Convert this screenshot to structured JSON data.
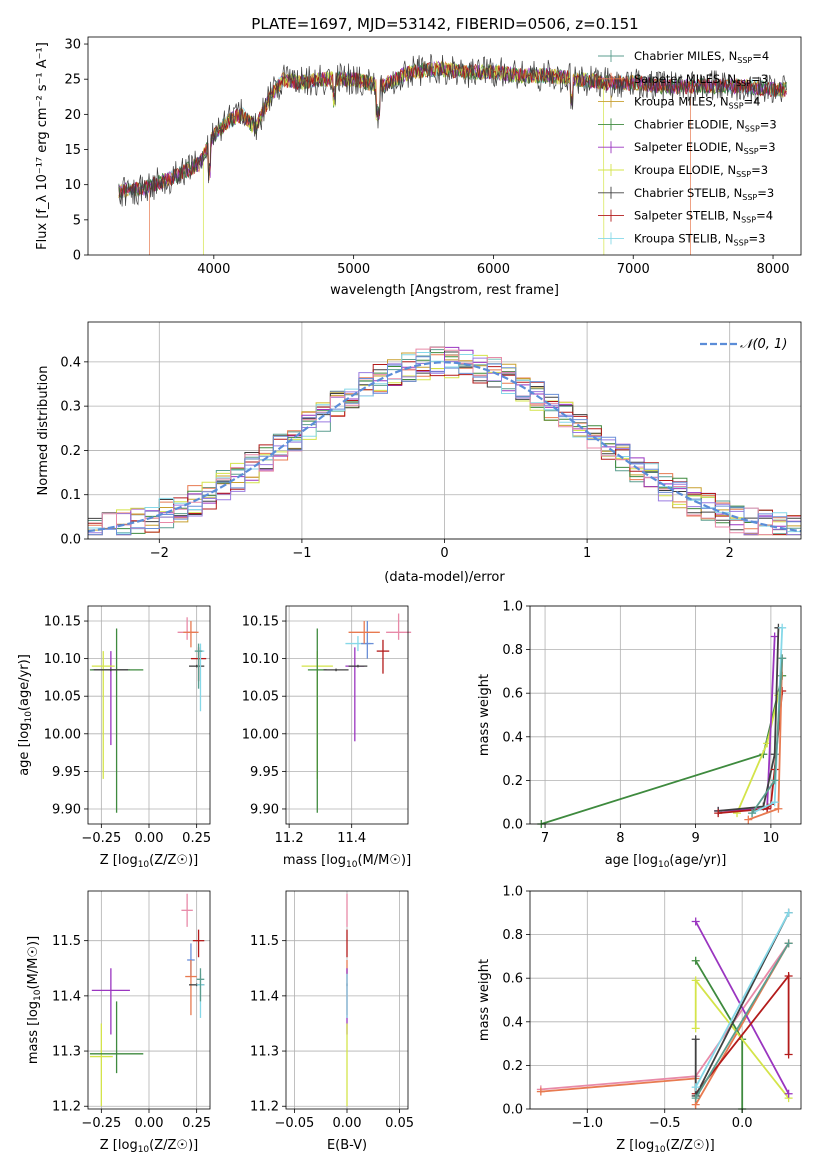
{
  "colors": {
    "chabrier_miles": "#5b9e8f",
    "salpeter_miles": "#e87a50",
    "kroupa_miles": "#c8a030",
    "chabrier_elodie": "#3e8a3e",
    "salpeter_elodie": "#9a35c0",
    "kroupa_elodie": "#d4e44a",
    "chabrier_stelib": "#404040",
    "salpeter_stelib": "#b31b1b",
    "kroupa_stelib": "#86d8e8",
    "violet": "#9a7be0",
    "pink": "#e88aa8",
    "blue": "#6a8fd8",
    "normal": "#5b8dd8",
    "orange": "#e0782a"
  },
  "chart_data": [
    {
      "type": "line",
      "title": "PLATE=1697, MJD=53142, FIBERID=0506, z=0.151",
      "xlabel": "wavelength [Angstrom, rest frame]",
      "ylabel": "Flux [f_λ 10⁻¹⁷ erg cm⁻² s⁻¹ A⁻¹]",
      "xlim": [
        3100,
        8200
      ],
      "ylim": [
        0,
        31
      ],
      "xticks": [
        "4000",
        "5000",
        "6000",
        "7000",
        "8000"
      ],
      "yticks": [
        "0",
        "5",
        "10",
        "15",
        "20",
        "25",
        "30"
      ],
      "legend_position": "right",
      "legend": [
        {
          "label": "Chabrier MILES, N_SSP=4",
          "prefix": "Chabrier MILES, N",
          "sub": "SSP",
          "suffix": "=4",
          "color_key": "chabrier_miles"
        },
        {
          "label": "Salpeter MILES, N_SSP=3",
          "prefix": "Salpeter MILES, N",
          "sub": "SSP",
          "suffix": "=3",
          "color_key": "salpeter_miles"
        },
        {
          "label": "Kroupa MILES, N_SSP=4",
          "prefix": "Kroupa MILES, N",
          "sub": "SSP",
          "suffix": "=4",
          "color_key": "kroupa_miles"
        },
        {
          "label": "Chabrier ELODIE, N_SSP=3",
          "prefix": "Chabrier ELODIE, N",
          "sub": "SSP",
          "suffix": "=3",
          "color_key": "chabrier_elodie"
        },
        {
          "label": "Salpeter ELODIE, N_SSP=3",
          "prefix": "Salpeter ELODIE, N",
          "sub": "SSP",
          "suffix": "=3",
          "color_key": "salpeter_elodie"
        },
        {
          "label": "Kroupa ELODIE, N_SSP=3",
          "prefix": "Kroupa ELODIE, N",
          "sub": "SSP",
          "suffix": "=3",
          "color_key": "kroupa_elodie"
        },
        {
          "label": "Chabrier STELIB, N_SSP=3",
          "prefix": "Chabrier STELIB, N",
          "sub": "SSP",
          "suffix": "=3",
          "color_key": "chabrier_stelib"
        },
        {
          "label": "Salpeter STELIB, N_SSP=4",
          "prefix": "Salpeter STELIB, N",
          "sub": "SSP",
          "suffix": "=4",
          "color_key": "salpeter_stelib"
        },
        {
          "label": "Kroupa STELIB, N_SSP=3",
          "prefix": "Kroupa STELIB, N",
          "sub": "SSP",
          "suffix": "=3",
          "color_key": "kroupa_stelib"
        }
      ],
      "spectrum_envelope": {
        "x": [
          3300,
          3500,
          3700,
          3900,
          4000,
          4100,
          4200,
          4300,
          4400,
          4500,
          4600,
          4800,
          5000,
          5200,
          5400,
          5600,
          5800,
          6000,
          6200,
          6400,
          6600,
          6800,
          7000,
          7200,
          7400,
          7600,
          7800,
          8000,
          8200
        ],
        "y": [
          9.0,
          9.5,
          11.0,
          13.0,
          17.0,
          19.0,
          20.0,
          18.0,
          22.5,
          25.0,
          24.5,
          25.0,
          25.0,
          24.0,
          26.0,
          26.5,
          26.0,
          26.0,
          25.5,
          25.5,
          25.0,
          24.5,
          24.5,
          24.0,
          24.0,
          24.0,
          24.0,
          23.5,
          23.5
        ]
      },
      "model_cutoffs": [
        {
          "color_key": "salpeter_miles",
          "x_start": 3540
        },
        {
          "color_key": "kroupa_elodie",
          "x_start": 3925,
          "x_end": 6790
        },
        {
          "color_key": "salpeter_miles",
          "x_end": 7410
        }
      ]
    },
    {
      "type": "histogram",
      "xlabel": "(data-model)/error",
      "ylabel": "Normed distribution",
      "xlim": [
        -2.5,
        2.5
      ],
      "ylim": [
        0,
        0.49
      ],
      "xticks": [
        "−2",
        "−1",
        "0",
        "1",
        "2"
      ],
      "yticks": [
        "0.0",
        "0.1",
        "0.2",
        "0.3",
        "0.4"
      ],
      "bin_width": 0.1,
      "legend": [
        {
          "label": "𝒩(0, 1)",
          "color_key": "normal",
          "style": "dashed"
        }
      ],
      "curve": {
        "name": "𝒩(0, 1)",
        "mean": 0,
        "sigma": 1
      }
    },
    {
      "type": "scatter",
      "xlabel_prefix": "Z [log",
      "xlabel_sub": "10",
      "xlabel_suffix": "(Z/Z☉)]",
      "ylabel_prefix": "age  [log",
      "ylabel_sub": "10",
      "ylabel_suffix": "(age/yr)]",
      "xlim": [
        -0.32,
        0.32
      ],
      "ylim": [
        9.88,
        10.17
      ],
      "xticks": [
        "−0.25",
        "0.00",
        "0.25"
      ],
      "yticks": [
        "9.90",
        "9.95",
        "10.00",
        "10.05",
        "10.10",
        "10.15"
      ],
      "points": [
        {
          "color_key": "salpeter_elodie",
          "x": -0.2,
          "y": 10.085,
          "xerr": 0.1,
          "yerr_lo": 0.1,
          "yerr_hi": 0.025
        },
        {
          "color_key": "kroupa_elodie",
          "x": -0.24,
          "y": 10.09,
          "xerr": 0.06,
          "yerr_lo": 0.15,
          "yerr_hi": 0.02
        },
        {
          "color_key": "chabrier_elodie",
          "x": -0.17,
          "y": 10.085,
          "xerr": 0.14,
          "yerr_lo": 0.19,
          "yerr_hi": 0.055
        },
        {
          "color_key": "chabrier_stelib",
          "x": -0.2,
          "y": 10.085,
          "xerr": 0.09,
          "yerr_lo": 0,
          "yerr_hi": 0
        },
        {
          "color_key": "pink",
          "x": 0.2,
          "y": 10.135,
          "xerr": 0.05,
          "yerr_lo": 0.01,
          "yerr_hi": 0.02
        },
        {
          "color_key": "salpeter_miles",
          "x": 0.22,
          "y": 10.135,
          "xerr": 0.04,
          "yerr_lo": 0.02,
          "yerr_hi": 0.015
        },
        {
          "color_key": "salpeter_stelib",
          "x": 0.26,
          "y": 10.1,
          "xerr": 0.04,
          "yerr_lo": 0.03,
          "yerr_hi": 0.015
        },
        {
          "color_key": "chabrier_stelib",
          "x": 0.25,
          "y": 10.09,
          "xerr": 0.04,
          "yerr_lo": 0,
          "yerr_hi": 0
        },
        {
          "color_key": "kroupa_stelib",
          "x": 0.27,
          "y": 10.11,
          "xerr": 0.02,
          "yerr_lo": 0.08,
          "yerr_hi": 0.01
        },
        {
          "color_key": "chabrier_miles",
          "x": 0.26,
          "y": 10.11,
          "xerr": 0.02,
          "yerr_lo": 0.05,
          "yerr_hi": 0.01
        }
      ]
    },
    {
      "type": "scatter",
      "xlabel_prefix": "mass [log",
      "xlabel_sub": "10",
      "xlabel_suffix": "(M/M☉)]",
      "ylabel": "",
      "xlim": [
        11.19,
        11.58
      ],
      "ylim": [
        9.88,
        10.17
      ],
      "xticks": [
        "11.2",
        "11.4"
      ],
      "yticks": [
        "9.90",
        "9.95",
        "10.00",
        "10.05",
        "10.10",
        "10.15"
      ],
      "points": [
        {
          "color_key": "kroupa_elodie",
          "x": 11.29,
          "y": 10.09,
          "xerr": 0.05,
          "yerr_lo": 0.15,
          "yerr_hi": 0.02
        },
        {
          "color_key": "chabrier_elodie",
          "x": 11.29,
          "y": 10.085,
          "xerr": 0.03,
          "yerr_lo": 0.19,
          "yerr_hi": 0.055
        },
        {
          "color_key": "chabrier_stelib",
          "x": 11.35,
          "y": 10.085,
          "xerr": 0.04,
          "yerr_lo": 0,
          "yerr_hi": 0
        },
        {
          "color_key": "salpeter_elodie",
          "x": 11.41,
          "y": 10.09,
          "xerr": 0.03,
          "yerr_lo": 0.1,
          "yerr_hi": 0.025
        },
        {
          "color_key": "chabrier_stelib",
          "x": 11.42,
          "y": 10.09,
          "xerr": 0.03,
          "yerr_lo": 0,
          "yerr_hi": 0
        },
        {
          "color_key": "kroupa_stelib",
          "x": 11.42,
          "y": 10.12,
          "xerr": 0.04,
          "yerr_lo": 0.01,
          "yerr_hi": 0.01
        },
        {
          "color_key": "blue",
          "x": 11.45,
          "y": 10.12,
          "xerr": 0.02,
          "yerr_lo": 0.02,
          "yerr_hi": 0.03
        },
        {
          "color_key": "salpeter_miles",
          "x": 11.44,
          "y": 10.135,
          "xerr": 0.05,
          "yerr_lo": 0.015,
          "yerr_hi": 0.015
        },
        {
          "color_key": "salpeter_stelib",
          "x": 11.5,
          "y": 10.11,
          "xerr": 0.02,
          "yerr_lo": 0.03,
          "yerr_hi": 0.015
        },
        {
          "color_key": "pink",
          "x": 11.55,
          "y": 10.135,
          "xerr": 0.04,
          "yerr_lo": 0.01,
          "yerr_hi": 0.025
        }
      ]
    },
    {
      "type": "line",
      "xlabel_prefix": "age  [log",
      "xlabel_sub": "10",
      "xlabel_suffix": "(age/yr)]",
      "ylabel": "mass weight",
      "xlim": [
        6.8,
        10.4
      ],
      "ylim": [
        0,
        1
      ],
      "xticks": [
        "7",
        "8",
        "9",
        "10"
      ],
      "yticks": [
        "0.0",
        "0.2",
        "0.4",
        "0.6",
        "0.8",
        "1.0"
      ],
      "series": [
        {
          "color_key": "chabrier_elodie",
          "x": [
            6.95,
            9.9,
            10.15
          ],
          "y": [
            0.0,
            0.32,
            0.68
          ]
        },
        {
          "color_key": "kroupa_elodie",
          "x": [
            9.55,
            9.95,
            10.1
          ],
          "y": [
            0.05,
            0.37,
            0.59
          ]
        },
        {
          "color_key": "salpeter_elodie",
          "x": [
            9.3,
            9.95,
            10.05
          ],
          "y": [
            0.06,
            0.07,
            0.86
          ]
        },
        {
          "color_key": "chabrier_stelib",
          "x": [
            9.3,
            9.9,
            10.05,
            10.1
          ],
          "y": [
            0.06,
            0.08,
            0.32,
            0.9
          ]
        },
        {
          "color_key": "salpeter_stelib",
          "x": [
            9.3,
            9.95,
            10.0,
            10.05,
            10.15
          ],
          "y": [
            0.05,
            0.07,
            0.09,
            0.25,
            0.61
          ]
        },
        {
          "color_key": "salpeter_miles",
          "x": [
            9.7,
            10.1,
            10.15
          ],
          "y": [
            0.02,
            0.07,
            0.76
          ]
        },
        {
          "color_key": "kroupa_stelib",
          "x": [
            9.75,
            10.05,
            10.15
          ],
          "y": [
            0.05,
            0.1,
            0.9
          ]
        },
        {
          "color_key": "chabrier_miles",
          "x": [
            9.75,
            10.05,
            10.15
          ],
          "y": [
            0.05,
            0.2,
            0.76
          ]
        }
      ]
    },
    {
      "type": "scatter",
      "xlabel_prefix": "Z [log",
      "xlabel_sub": "10",
      "xlabel_suffix": "(Z/Z☉)]",
      "ylabel_prefix": "mass [log",
      "ylabel_sub": "10",
      "ylabel_suffix": "(M/M☉)]",
      "xlim": [
        -0.32,
        0.32
      ],
      "ylim": [
        11.195,
        11.59
      ],
      "xticks": [
        "−0.25",
        "0.00",
        "0.25"
      ],
      "yticks": [
        "11.2",
        "11.3",
        "11.4",
        "11.5"
      ],
      "points": [
        {
          "color_key": "salpeter_elodie",
          "x": -0.2,
          "y": 11.41,
          "xerr": 0.1,
          "yerr_lo": 0.08,
          "yerr_hi": 0.04
        },
        {
          "color_key": "kroupa_elodie",
          "x": -0.25,
          "y": 11.29,
          "xerr": 0.06,
          "yerr_lo": 0.09,
          "yerr_hi": 0.06
        },
        {
          "color_key": "chabrier_elodie",
          "x": -0.17,
          "y": 11.295,
          "xerr": 0.14,
          "yerr_lo": 0.035,
          "yerr_hi": 0.095
        },
        {
          "color_key": "pink",
          "x": 0.2,
          "y": 11.555,
          "xerr": 0.03,
          "yerr_lo": 0.03,
          "yerr_hi": 0.03
        },
        {
          "color_key": "blue",
          "x": 0.22,
          "y": 11.465,
          "xerr": 0.02,
          "yerr_lo": 0.03,
          "yerr_hi": 0.03
        },
        {
          "color_key": "salpeter_miles",
          "x": 0.22,
          "y": 11.435,
          "xerr": 0.03,
          "yerr_lo": 0.07,
          "yerr_hi": 0.03
        },
        {
          "color_key": "salpeter_stelib",
          "x": 0.26,
          "y": 11.5,
          "xerr": 0.03,
          "yerr_lo": 0.03,
          "yerr_hi": 0.02
        },
        {
          "color_key": "chabrier_stelib",
          "x": 0.25,
          "y": 11.42,
          "xerr": 0.04,
          "yerr_lo": 0,
          "yerr_hi": 0
        },
        {
          "color_key": "kroupa_stelib",
          "x": 0.27,
          "y": 11.42,
          "xerr": 0.02,
          "yerr_lo": 0.06,
          "yerr_hi": 0.02
        },
        {
          "color_key": "chabrier_miles",
          "x": 0.27,
          "y": 11.43,
          "xerr": 0.02,
          "yerr_lo": 0.04,
          "yerr_hi": 0.02
        }
      ]
    },
    {
      "type": "scatter",
      "xlabel": "E(B-V)",
      "ylabel": "",
      "xlim": [
        -0.058,
        0.058
      ],
      "ylim": [
        11.195,
        11.59
      ],
      "xticks": [
        "−0.05",
        "0.00",
        "0.05"
      ],
      "yticks": [
        "11.2",
        "11.3",
        "11.4",
        "11.5"
      ],
      "points": [
        {
          "color_key": "pink",
          "x": 0.0,
          "y": 11.555,
          "yerr_lo": 0.03,
          "yerr_hi": 0.03
        },
        {
          "color_key": "salpeter_stelib",
          "x": 0.0,
          "y": 11.5,
          "yerr_lo": 0.03,
          "yerr_hi": 0.02
        },
        {
          "color_key": "salpeter_miles",
          "x": 0.0,
          "y": 11.435,
          "yerr_lo": 0.07,
          "yerr_hi": 0.03
        },
        {
          "color_key": "chabrier_stelib",
          "x": 0.0,
          "y": 11.42,
          "yerr_lo": 0.0,
          "yerr_hi": 0.0
        },
        {
          "color_key": "salpeter_elodie",
          "x": 0.0,
          "y": 11.41,
          "yerr_lo": 0.08,
          "yerr_hi": 0.04
        },
        {
          "color_key": "kroupa_elodie",
          "x": 0.0,
          "y": 11.29,
          "yerr_lo": 0.09,
          "yerr_hi": 0.06
        },
        {
          "color_key": "kroupa_stelib",
          "x": 0.0,
          "y": 11.42,
          "yerr_lo": 0.06,
          "yerr_hi": 0.02
        }
      ]
    },
    {
      "type": "line",
      "xlabel_prefix": "Z [log",
      "xlabel_sub": "10",
      "xlabel_suffix": "(Z/Z☉)]",
      "ylabel": "mass weight",
      "xlim": [
        -1.37,
        0.38
      ],
      "ylim": [
        0,
        1
      ],
      "xticks": [
        "−1.0",
        "−0.5",
        "0.0"
      ],
      "yticks": [
        "0.0",
        "0.2",
        "0.4",
        "0.6",
        "0.8",
        "1.0"
      ],
      "series": [
        {
          "color_key": "pink",
          "x": [
            -1.3,
            -0.3,
            0.3
          ],
          "y": [
            0.09,
            0.15,
            0.76
          ]
        },
        {
          "color_key": "salpeter_miles",
          "x": [
            -1.3,
            -0.3,
            -0.3,
            0.3
          ],
          "y": [
            0.08,
            0.14,
            0.02,
            0.76
          ]
        },
        {
          "color_key": "chabrier_elodie",
          "x": [
            -0.3,
            0.0,
            0.0
          ],
          "y": [
            0.68,
            0.32,
            0.0
          ]
        },
        {
          "color_key": "kroupa_elodie",
          "x": [
            -0.3,
            -0.3,
            0.3
          ],
          "y": [
            0.37,
            0.59,
            0.05
          ]
        },
        {
          "color_key": "salpeter_elodie",
          "x": [
            -0.3,
            0.3
          ],
          "y": [
            0.86,
            0.07
          ]
        },
        {
          "color_key": "salpeter_stelib",
          "x": [
            -0.3,
            0.3,
            0.3
          ],
          "y": [
            0.07,
            0.61,
            0.25
          ]
        },
        {
          "color_key": "chabrier_stelib",
          "x": [
            -0.3,
            -0.3,
            0.3
          ],
          "y": [
            0.32,
            0.06,
            0.9
          ]
        },
        {
          "color_key": "kroupa_stelib",
          "x": [
            -0.3,
            0.3
          ],
          "y": [
            0.1,
            0.9
          ]
        },
        {
          "color_key": "chabrier_miles",
          "x": [
            -0.3,
            0.3
          ],
          "y": [
            0.05,
            0.76
          ]
        }
      ]
    }
  ]
}
